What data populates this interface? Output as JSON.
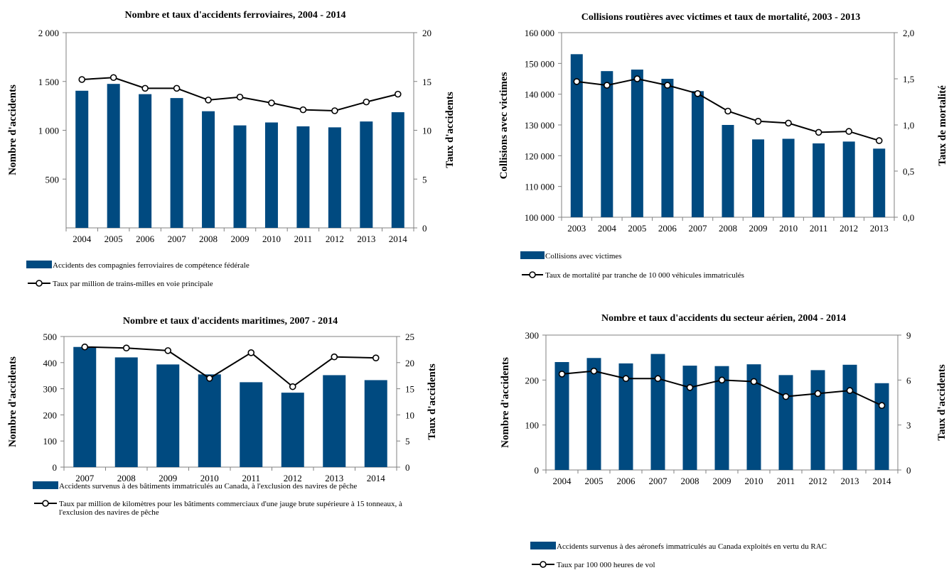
{
  "colors": {
    "bar": "#004a80",
    "line": "#000000",
    "marker_fill": "#ffffff",
    "axis": "#808080"
  },
  "chart_data": [
    {
      "type": "bar",
      "title": "Nombre et taux d'accidents ferroviaires, 2004 - 2014",
      "ylabel": "Nombre d'accidents",
      "y2label": "Taux d'accidents",
      "categories": [
        "2004",
        "2005",
        "2006",
        "2007",
        "2008",
        "2009",
        "2010",
        "2011",
        "2012",
        "2013",
        "2014"
      ],
      "ylim": [
        0,
        2000
      ],
      "y2lim": [
        0,
        20
      ],
      "yticks": [
        "500",
        "1 000",
        "1 500",
        "2 000"
      ],
      "yticks_values": [
        500,
        1000,
        1500,
        2000
      ],
      "y2ticks": [
        "0",
        "5",
        "10",
        "15",
        "20"
      ],
      "y2ticks_values": [
        0,
        5,
        10,
        15,
        20
      ],
      "series": [
        {
          "name": "Accidents des compagnies ferroviaires de compétence fédérale",
          "kind": "bar",
          "axis": "left",
          "values": [
            1405,
            1475,
            1370,
            1330,
            1195,
            1050,
            1080,
            1040,
            1030,
            1090,
            1185
          ]
        },
        {
          "name": "Taux par million de trains-milles en voie principale",
          "kind": "line",
          "axis": "right",
          "values": [
            15.2,
            15.4,
            14.3,
            14.3,
            13.1,
            13.4,
            12.8,
            12.1,
            12.0,
            12.9,
            13.7
          ]
        }
      ],
      "grid": false,
      "legend": "bottom"
    },
    {
      "type": "bar",
      "title": "Collisions routières avec victimes et taux de mortalité, 2003 - 2013",
      "ylabel": "Collisions avec victimes",
      "y2label": "Taux de mortalité",
      "categories": [
        "2003",
        "2004",
        "2005",
        "2006",
        "2007",
        "2008",
        "2009",
        "2010",
        "2011",
        "2012",
        "2013"
      ],
      "ylim": [
        100000,
        160000
      ],
      "y2lim": [
        0,
        2
      ],
      "yticks": [
        "100 000",
        "110 000",
        "120 000",
        "130 000",
        "140 000",
        "150 000",
        "160 000"
      ],
      "yticks_values": [
        100000,
        110000,
        120000,
        130000,
        140000,
        150000,
        160000
      ],
      "y2ticks": [
        "0,0",
        "0,5",
        "1,0",
        "1,5",
        "2,0"
      ],
      "y2ticks_values": [
        0,
        0.5,
        1.0,
        1.5,
        2.0
      ],
      "series": [
        {
          "name": "Collisions avec victimes",
          "kind": "bar",
          "axis": "left",
          "values": [
            153000,
            147500,
            148000,
            145000,
            141000,
            130000,
            125300,
            125500,
            124000,
            124600,
            122300
          ]
        },
        {
          "name": "Taux de mortalité par tranche de 10 000 véhicules immatriculés",
          "kind": "line",
          "axis": "right",
          "values": [
            1.47,
            1.43,
            1.5,
            1.43,
            1.34,
            1.15,
            1.04,
            1.02,
            0.92,
            0.93,
            0.83
          ]
        }
      ],
      "grid": false,
      "legend": "bottom"
    },
    {
      "type": "bar",
      "title": "Nombre et taux d'accidents maritimes, 2007 - 2014",
      "ylabel": "Nombre d'accidents",
      "y2label": "Taux d'accidents",
      "categories": [
        "2007",
        "2008",
        "2009",
        "2010",
        "2011",
        "2012",
        "2013",
        "2014"
      ],
      "ylim": [
        0,
        500
      ],
      "y2lim": [
        0,
        25
      ],
      "yticks": [
        "0",
        "100",
        "200",
        "300",
        "400",
        "500"
      ],
      "yticks_values": [
        0,
        100,
        200,
        300,
        400,
        500
      ],
      "y2ticks": [
        "0",
        "5",
        "10",
        "15",
        "20",
        "25"
      ],
      "y2ticks_values": [
        0,
        5,
        10,
        15,
        20,
        25
      ],
      "series": [
        {
          "name": "Accidents survenus à des bâtiments immatriculés au Canada, à l'exclusion des navires de pêche",
          "kind": "bar",
          "axis": "left",
          "values": [
            460,
            420,
            393,
            355,
            325,
            285,
            352,
            333
          ]
        },
        {
          "name": "Taux par million de kilomètres pour les bâtiments commerciaux d'une jauge brute supérieure à 15 tonneaux, à l'exclusion des navires de pêche",
          "kind": "line",
          "axis": "right",
          "values": [
            23.0,
            22.8,
            22.3,
            17.0,
            21.9,
            15.4,
            21.1,
            20.9
          ]
        }
      ],
      "grid": false,
      "legend": "bottom"
    },
    {
      "type": "bar",
      "title": "Nombre et taux d'accidents du secteur aérien, 2004 - 2014",
      "ylabel": "Nombre d'accidents",
      "y2label": "Taux d'accidents",
      "categories": [
        "2004",
        "2005",
        "2006",
        "2007",
        "2008",
        "2009",
        "2010",
        "2011",
        "2012",
        "2013",
        "2014"
      ],
      "ylim": [
        0,
        300
      ],
      "y2lim": [
        0,
        9
      ],
      "yticks": [
        "0",
        "100",
        "200",
        "300"
      ],
      "yticks_values": [
        0,
        100,
        200,
        300
      ],
      "y2ticks": [
        "0",
        "3",
        "6",
        "9"
      ],
      "y2ticks_values": [
        0,
        3,
        6,
        9
      ],
      "series": [
        {
          "name": "Accidents survenus à des aéronefs immatriculés au Canada exploités en vertu du RAC",
          "kind": "bar",
          "axis": "left",
          "values": [
            240,
            249,
            237,
            258,
            232,
            231,
            235,
            211,
            222,
            234,
            193
          ]
        },
        {
          "name": "Taux par 100 000 heures de vol",
          "kind": "line",
          "axis": "right",
          "values": [
            6.4,
            6.6,
            6.1,
            6.1,
            5.5,
            6.0,
            5.9,
            4.9,
            5.1,
            5.3,
            4.3
          ]
        }
      ],
      "grid": false,
      "legend": "bottom"
    }
  ]
}
